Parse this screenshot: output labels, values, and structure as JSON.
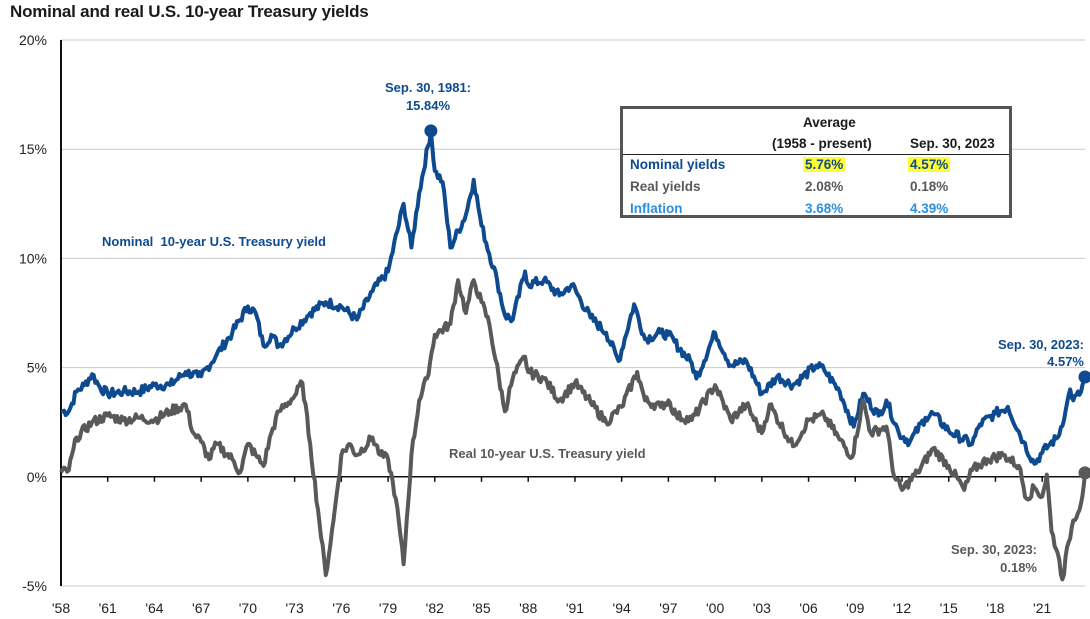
{
  "title": "Nominal and real U.S. 10-year Treasury yields",
  "colors": {
    "nominal": "#0e4a8f",
    "real": "#58595b",
    "inflation": "#2b8ede",
    "highlight": "#ffff33",
    "grid": "#c8c8c8",
    "axis": "#111111"
  },
  "table": {
    "header_avg_line1": "Average",
    "header_avg_line2": "(1958 - present)",
    "header_date": "Sep. 30, 2023",
    "rows": [
      {
        "label": "Nominal yields",
        "avg": "5.76%",
        "current": "4.57%",
        "color_key": "nominal",
        "highlight": true
      },
      {
        "label": "Real yields",
        "avg": "2.08%",
        "current": "0.18%",
        "color_key": "real",
        "highlight": false
      },
      {
        "label": "Inflation",
        "avg": "3.68%",
        "current": "4.39%",
        "color_key": "inflation",
        "highlight": false
      }
    ]
  },
  "annotations": {
    "peak_line1": "Sep. 30, 1981:",
    "peak_line2": "15.84%",
    "nominal_end_line1": "Sep. 30, 2023:",
    "nominal_end_line2": "4.57%",
    "real_end_line1": "Sep. 30, 2023:",
    "real_end_line2": "0.18%",
    "nominal_series_label": "Nominal  10-year U.S. Treasury yield",
    "real_series_label": "Real 10-year U.S. Treasury yield"
  },
  "chart_data": {
    "type": "line",
    "title": "Nominal and real U.S. 10-year Treasury yields",
    "xlabel": "",
    "ylabel": "",
    "xlim": [
      1958,
      2023.75
    ],
    "ylim": [
      -5,
      20
    ],
    "y_ticks": [
      -5,
      0,
      5,
      10,
      15,
      20
    ],
    "y_tick_labels": [
      "-5%",
      "0%",
      "5%",
      "10%",
      "15%",
      "20%"
    ],
    "x_ticks": [
      1958,
      1961,
      1964,
      1967,
      1970,
      1973,
      1976,
      1979,
      1982,
      1985,
      1988,
      1991,
      1994,
      1997,
      2000,
      2003,
      2006,
      2009,
      2012,
      2015,
      2018,
      2021
    ],
    "x_tick_labels": [
      "'58",
      "'61",
      "'64",
      "'67",
      "'70",
      "'73",
      "'76",
      "'79",
      "'82",
      "'85",
      "'88",
      "'91",
      "'94",
      "'97",
      "'00",
      "'03",
      "'06",
      "'09",
      "'12",
      "'15",
      "'18",
      "'21"
    ],
    "grid": "horizontal",
    "series": [
      {
        "name": "Nominal 10-year U.S. Treasury yield",
        "color": "#0e4a8f",
        "points": [
          [
            1958.0,
            3.0
          ],
          [
            1958.5,
            3.0
          ],
          [
            1959.0,
            3.9
          ],
          [
            1959.5,
            4.2
          ],
          [
            1960.0,
            4.7
          ],
          [
            1960.5,
            4.1
          ],
          [
            1961.0,
            3.8
          ],
          [
            1962.0,
            3.9
          ],
          [
            1963.0,
            3.9
          ],
          [
            1964.0,
            4.2
          ],
          [
            1965.0,
            4.2
          ],
          [
            1966.0,
            4.8
          ],
          [
            1966.8,
            4.6
          ],
          [
            1967.0,
            4.6
          ],
          [
            1968.0,
            5.6
          ],
          [
            1969.0,
            6.6
          ],
          [
            1970.0,
            7.8
          ],
          [
            1970.5,
            7.5
          ],
          [
            1971.0,
            6.0
          ],
          [
            1971.5,
            6.5
          ],
          [
            1972.0,
            6.0
          ],
          [
            1973.0,
            6.8
          ],
          [
            1974.0,
            7.5
          ],
          [
            1975.0,
            8.0
          ],
          [
            1976.0,
            7.8
          ],
          [
            1977.0,
            7.2
          ],
          [
            1978.0,
            8.5
          ],
          [
            1979.0,
            9.4
          ],
          [
            1980.0,
            12.5
          ],
          [
            1980.5,
            10.5
          ],
          [
            1981.0,
            13.0
          ],
          [
            1981.75,
            15.84
          ],
          [
            1982.0,
            14.0
          ],
          [
            1982.5,
            13.5
          ],
          [
            1983.0,
            10.5
          ],
          [
            1984.0,
            12.0
          ],
          [
            1984.5,
            13.6
          ],
          [
            1985.0,
            11.5
          ],
          [
            1986.0,
            9.0
          ],
          [
            1986.5,
            7.4
          ],
          [
            1987.0,
            7.2
          ],
          [
            1987.8,
            9.4
          ],
          [
            1988.0,
            8.8
          ],
          [
            1989.0,
            9.0
          ],
          [
            1990.0,
            8.3
          ],
          [
            1990.8,
            8.8
          ],
          [
            1992.0,
            7.3
          ],
          [
            1993.0,
            6.6
          ],
          [
            1993.8,
            5.3
          ],
          [
            1994.8,
            7.9
          ],
          [
            1995.5,
            6.3
          ],
          [
            1996.5,
            6.6
          ],
          [
            1997.0,
            6.5
          ],
          [
            1998.5,
            5.2
          ],
          [
            1998.8,
            4.5
          ],
          [
            2000.0,
            6.6
          ],
          [
            2001.0,
            5.1
          ],
          [
            2002.0,
            5.3
          ],
          [
            2003.0,
            3.8
          ],
          [
            2004.0,
            4.6
          ],
          [
            2005.0,
            4.2
          ],
          [
            2006.5,
            5.1
          ],
          [
            2007.0,
            4.9
          ],
          [
            2008.0,
            3.9
          ],
          [
            2008.9,
            2.3
          ],
          [
            2009.5,
            3.8
          ],
          [
            2010.5,
            2.8
          ],
          [
            2011.0,
            3.5
          ],
          [
            2011.8,
            2.0
          ],
          [
            2012.5,
            1.6
          ],
          [
            2013.5,
            2.7
          ],
          [
            2014.0,
            2.9
          ],
          [
            2015.0,
            2.1
          ],
          [
            2016.5,
            1.5
          ],
          [
            2017.0,
            2.4
          ],
          [
            2018.0,
            2.9
          ],
          [
            2018.8,
            3.2
          ],
          [
            2019.8,
            1.6
          ],
          [
            2020.5,
            0.6
          ],
          [
            2021.0,
            1.1
          ],
          [
            2021.5,
            1.5
          ],
          [
            2022.0,
            1.8
          ],
          [
            2022.5,
            3.0
          ],
          [
            2022.8,
            4.0
          ],
          [
            2023.0,
            3.5
          ],
          [
            2023.5,
            3.9
          ],
          [
            2023.75,
            4.57
          ]
        ]
      },
      {
        "name": "Real 10-year U.S. Treasury yield",
        "color": "#58595b",
        "points": [
          [
            1958.0,
            0.2
          ],
          [
            1958.5,
            0.3
          ],
          [
            1959.0,
            1.8
          ],
          [
            1960.0,
            2.5
          ],
          [
            1961.0,
            2.8
          ],
          [
            1962.0,
            2.6
          ],
          [
            1963.0,
            2.7
          ],
          [
            1964.0,
            2.6
          ],
          [
            1965.0,
            3.0
          ],
          [
            1966.0,
            3.3
          ],
          [
            1966.5,
            2.0
          ],
          [
            1967.0,
            1.6
          ],
          [
            1967.5,
            0.8
          ],
          [
            1968.0,
            1.5
          ],
          [
            1969.0,
            0.8
          ],
          [
            1969.5,
            0.2
          ],
          [
            1970.0,
            1.5
          ],
          [
            1970.5,
            1.0
          ],
          [
            1971.0,
            0.5
          ],
          [
            1971.5,
            2.0
          ],
          [
            1972.0,
            3.0
          ],
          [
            1973.0,
            3.7
          ],
          [
            1973.5,
            4.3
          ],
          [
            1974.0,
            1.5
          ],
          [
            1974.5,
            -1.5
          ],
          [
            1975.0,
            -4.5
          ],
          [
            1975.5,
            -2.0
          ],
          [
            1976.0,
            1.0
          ],
          [
            1976.5,
            1.5
          ],
          [
            1977.0,
            1.0
          ],
          [
            1978.0,
            1.8
          ],
          [
            1978.5,
            1.0
          ],
          [
            1979.0,
            0.8
          ],
          [
            1979.5,
            -1.0
          ],
          [
            1980.0,
            -4.0
          ],
          [
            1980.5,
            1.0
          ],
          [
            1981.0,
            3.5
          ],
          [
            1981.5,
            4.5
          ],
          [
            1982.0,
            6.5
          ],
          [
            1983.0,
            7.0
          ],
          [
            1983.5,
            9.0
          ],
          [
            1984.0,
            7.5
          ],
          [
            1984.5,
            9.0
          ],
          [
            1985.0,
            8.0
          ],
          [
            1985.5,
            7.0
          ],
          [
            1986.5,
            3.0
          ],
          [
            1987.0,
            4.5
          ],
          [
            1987.8,
            5.5
          ],
          [
            1988.0,
            4.8
          ],
          [
            1989.0,
            4.5
          ],
          [
            1990.0,
            3.5
          ],
          [
            1991.0,
            4.3
          ],
          [
            1992.0,
            3.4
          ],
          [
            1993.0,
            2.5
          ],
          [
            1994.0,
            3.2
          ],
          [
            1995.0,
            4.8
          ],
          [
            1995.5,
            3.5
          ],
          [
            1996.5,
            3.2
          ],
          [
            1997.0,
            3.5
          ],
          [
            1997.5,
            2.8
          ],
          [
            1998.5,
            2.6
          ],
          [
            2000.0,
            4.2
          ],
          [
            2001.0,
            2.6
          ],
          [
            2002.0,
            3.3
          ],
          [
            2003.0,
            2.0
          ],
          [
            2003.5,
            3.3
          ],
          [
            2005.0,
            1.4
          ],
          [
            2006.0,
            2.6
          ],
          [
            2007.0,
            2.8
          ],
          [
            2008.0,
            1.7
          ],
          [
            2008.8,
            0.9
          ],
          [
            2009.5,
            3.5
          ],
          [
            2010.0,
            2.0
          ],
          [
            2011.0,
            2.3
          ],
          [
            2011.5,
            0.0
          ],
          [
            2012.0,
            -0.6
          ],
          [
            2013.0,
            0.2
          ],
          [
            2014.0,
            1.3
          ],
          [
            2015.0,
            0.5
          ],
          [
            2016.0,
            -0.6
          ],
          [
            2016.5,
            0.3
          ],
          [
            2017.5,
            0.8
          ],
          [
            2018.5,
            1.0
          ],
          [
            2019.5,
            0.5
          ],
          [
            2020.0,
            -1.0
          ],
          [
            2020.5,
            -0.5
          ],
          [
            2021.0,
            -0.9
          ],
          [
            2021.3,
            0.1
          ],
          [
            2021.6,
            -2.5
          ],
          [
            2022.0,
            -3.5
          ],
          [
            2022.3,
            -4.7
          ],
          [
            2022.7,
            -3.0
          ],
          [
            2023.0,
            -2.0
          ],
          [
            2023.5,
            -1.2
          ],
          [
            2023.75,
            0.18
          ]
        ]
      }
    ],
    "markers": [
      {
        "series": "Nominal 10-year U.S. Treasury yield",
        "x": 1981.75,
        "y": 15.84,
        "label": "Sep. 30, 1981: 15.84%"
      },
      {
        "series": "Nominal 10-year U.S. Treasury yield",
        "x": 2023.75,
        "y": 4.57,
        "label": "Sep. 30, 2023: 4.57%"
      },
      {
        "series": "Real 10-year U.S. Treasury yield",
        "x": 2023.75,
        "y": 0.18,
        "label": "Sep. 30, 2023: 0.18%"
      }
    ]
  }
}
